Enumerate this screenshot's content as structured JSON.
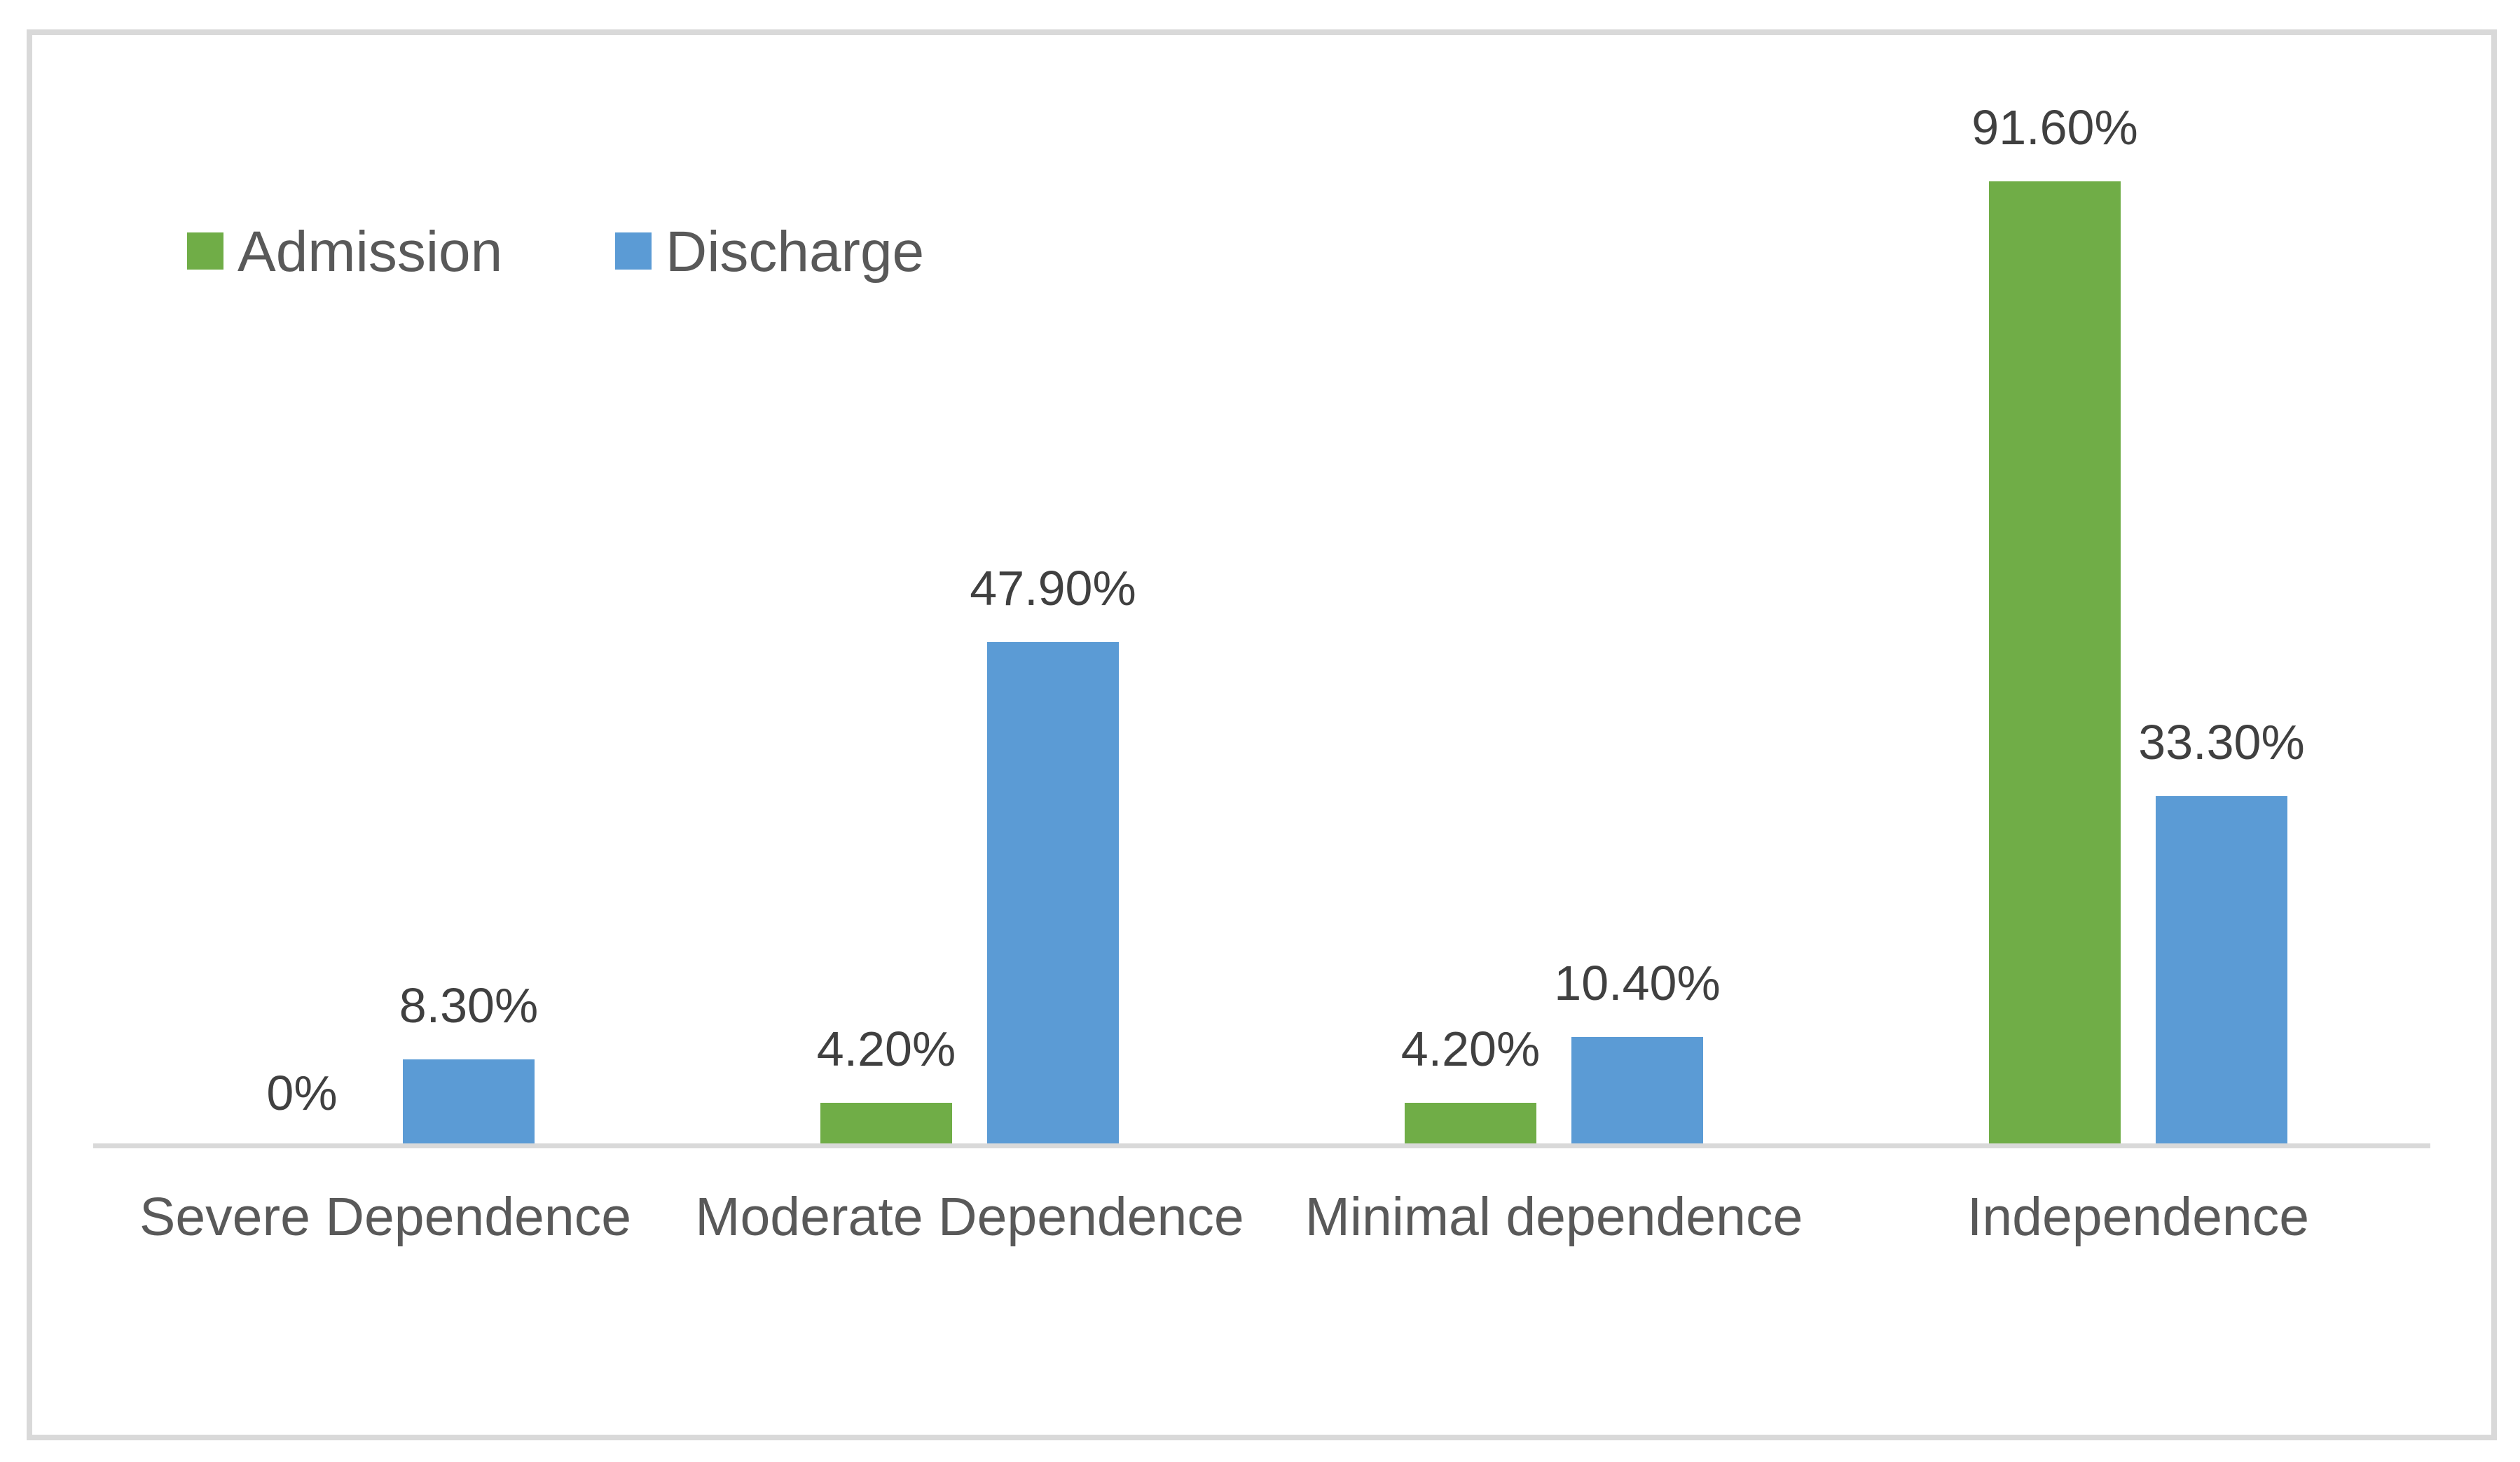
{
  "chart_data": {
    "type": "bar",
    "categories": [
      "Severe Dependence",
      "Moderate Dependence",
      "Minimal dependence",
      "Independence"
    ],
    "series": [
      {
        "name": "Admission",
        "color": "#70AD47",
        "values": [
          0,
          4.2,
          4.2,
          91.6
        ],
        "labels": [
          "0%",
          "4.20%",
          "4.20%",
          "91.60%"
        ]
      },
      {
        "name": "Discharge",
        "color": "#5B9BD5",
        "values": [
          8.3,
          47.9,
          10.4,
          33.3
        ],
        "labels": [
          "8.30%",
          "47.90%",
          "10.40%",
          "33.30%"
        ]
      }
    ],
    "title": "",
    "xlabel": "",
    "ylabel": "",
    "ylim": [
      0,
      100
    ],
    "grid": false,
    "legend_position": "top-left",
    "axis_color": "#D9D9D9",
    "frame_color": "#D9D9D9",
    "data_label_color": "#404040",
    "category_label_color": "#595959"
  }
}
